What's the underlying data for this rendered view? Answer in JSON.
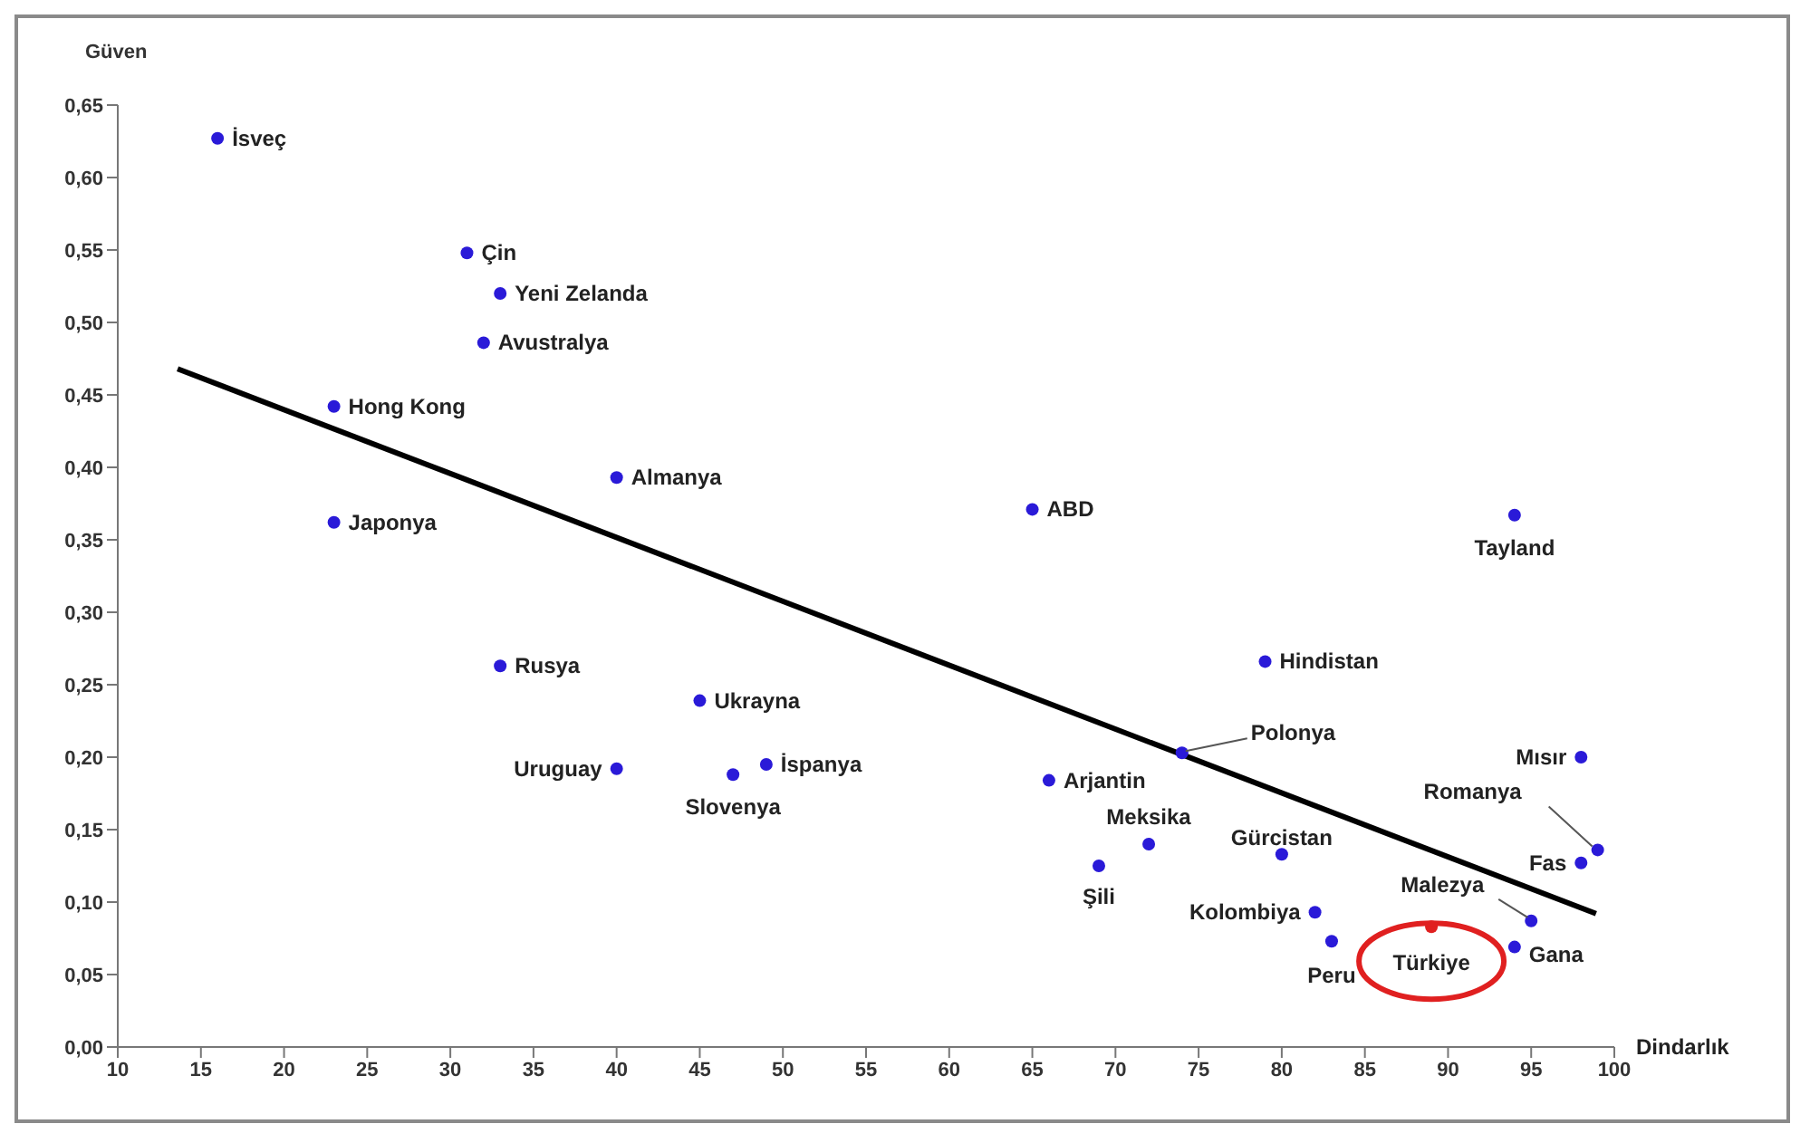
{
  "chart_data": {
    "type": "scatter",
    "xlabel": "Dindarlık",
    "ylabel": "Güven",
    "xlim": [
      10,
      100
    ],
    "xticks": [
      10,
      15,
      20,
      25,
      30,
      35,
      40,
      45,
      50,
      55,
      60,
      65,
      70,
      75,
      80,
      85,
      90,
      95,
      100
    ],
    "ylim": [
      0,
      0.65
    ],
    "yticks": [
      {
        "value": 0,
        "label": "0,00"
      },
      {
        "value": 0.05,
        "label": "0,05"
      },
      {
        "value": 0.1,
        "label": "0,10"
      },
      {
        "value": 0.15,
        "label": "0,15"
      },
      {
        "value": 0.2,
        "label": "0,20"
      },
      {
        "value": 0.25,
        "label": "0,25"
      },
      {
        "value": 0.3,
        "label": "0,30"
      },
      {
        "value": 0.35,
        "label": "0,35"
      },
      {
        "value": 0.4,
        "label": "0,40"
      },
      {
        "value": 0.45,
        "label": "0,45"
      },
      {
        "value": 0.5,
        "label": "0,50"
      },
      {
        "value": 0.55,
        "label": "0,55"
      },
      {
        "value": 0.6,
        "label": "0,60"
      },
      {
        "value": 0.65,
        "label": "0,65"
      }
    ],
    "grid": false,
    "legend": false,
    "marker": "circle",
    "series": [
      {
        "color": "#2a1ad8",
        "x": [
          16,
          31,
          33,
          32,
          23,
          40,
          23,
          65,
          94,
          33,
          45,
          40,
          47,
          49,
          79,
          74,
          66,
          72,
          69,
          80,
          82,
          83,
          95,
          94,
          98,
          99,
          98
        ],
        "values": [
          0.627,
          0.548,
          0.52,
          0.486,
          0.442,
          0.393,
          0.362,
          0.371,
          0.367,
          0.263,
          0.239,
          0.192,
          0.188,
          0.195,
          0.266,
          0.203,
          0.184,
          0.14,
          0.125,
          0.133,
          0.093,
          0.073,
          0.087,
          0.069,
          0.2,
          0.136,
          0.127
        ]
      },
      {
        "color": "#e02020",
        "x": [
          89
        ],
        "values": [
          0.083
        ]
      },
      {
        "type": "line",
        "color": "#000000",
        "x": [
          13.6,
          98.9
        ],
        "values": [
          0.468,
          0.092
        ],
        "marker": "none",
        "line_style": "solid"
      }
    ],
    "annotations": [
      {
        "text": "İsveç",
        "x": 16,
        "y": 0.627
      },
      {
        "text": "Çin",
        "x": 31,
        "y": 0.548
      },
      {
        "text": "Yeni Zelanda",
        "x": 33,
        "y": 0.52
      },
      {
        "text": "Avustralya",
        "x": 32,
        "y": 0.486
      },
      {
        "text": "Hong Kong",
        "x": 23,
        "y": 0.442
      },
      {
        "text": "Almanya",
        "x": 40,
        "y": 0.393
      },
      {
        "text": "Japonya",
        "x": 23,
        "y": 0.362
      },
      {
        "text": "ABD",
        "x": 65,
        "y": 0.371
      },
      {
        "text": "Tayland",
        "x": 94,
        "y": 0.367
      },
      {
        "text": "Rusya",
        "x": 33,
        "y": 0.263
      },
      {
        "text": "Ukrayna",
        "x": 45,
        "y": 0.239
      },
      {
        "text": "Uruguay",
        "x": 40,
        "y": 0.192
      },
      {
        "text": "Slovenya",
        "x": 47,
        "y": 0.188
      },
      {
        "text": "İspanya",
        "x": 49,
        "y": 0.195
      },
      {
        "text": "Hindistan",
        "x": 79,
        "y": 0.266
      },
      {
        "text": "Polonya",
        "x": 74,
        "y": 0.203
      },
      {
        "text": "Arjantin",
        "x": 66,
        "y": 0.184
      },
      {
        "text": "Meksika",
        "x": 72,
        "y": 0.14
      },
      {
        "text": "Şili",
        "x": 69,
        "y": 0.125
      },
      {
        "text": "Gürcistan",
        "x": 80,
        "y": 0.133
      },
      {
        "text": "Kolombiya",
        "x": 82,
        "y": 0.093
      },
      {
        "text": "Peru",
        "x": 83,
        "y": 0.073
      },
      {
        "text": "Malezya",
        "x": 95,
        "y": 0.087
      },
      {
        "text": "Gana",
        "x": 94,
        "y": 0.069
      },
      {
        "text": "Mısır",
        "x": 98,
        "y": 0.2
      },
      {
        "text": "Romanya",
        "x": 99,
        "y": 0.136
      },
      {
        "text": "Fas",
        "x": 98,
        "y": 0.127
      },
      {
        "text": "Türkiye",
        "x": 89,
        "y": 0.083
      }
    ]
  }
}
